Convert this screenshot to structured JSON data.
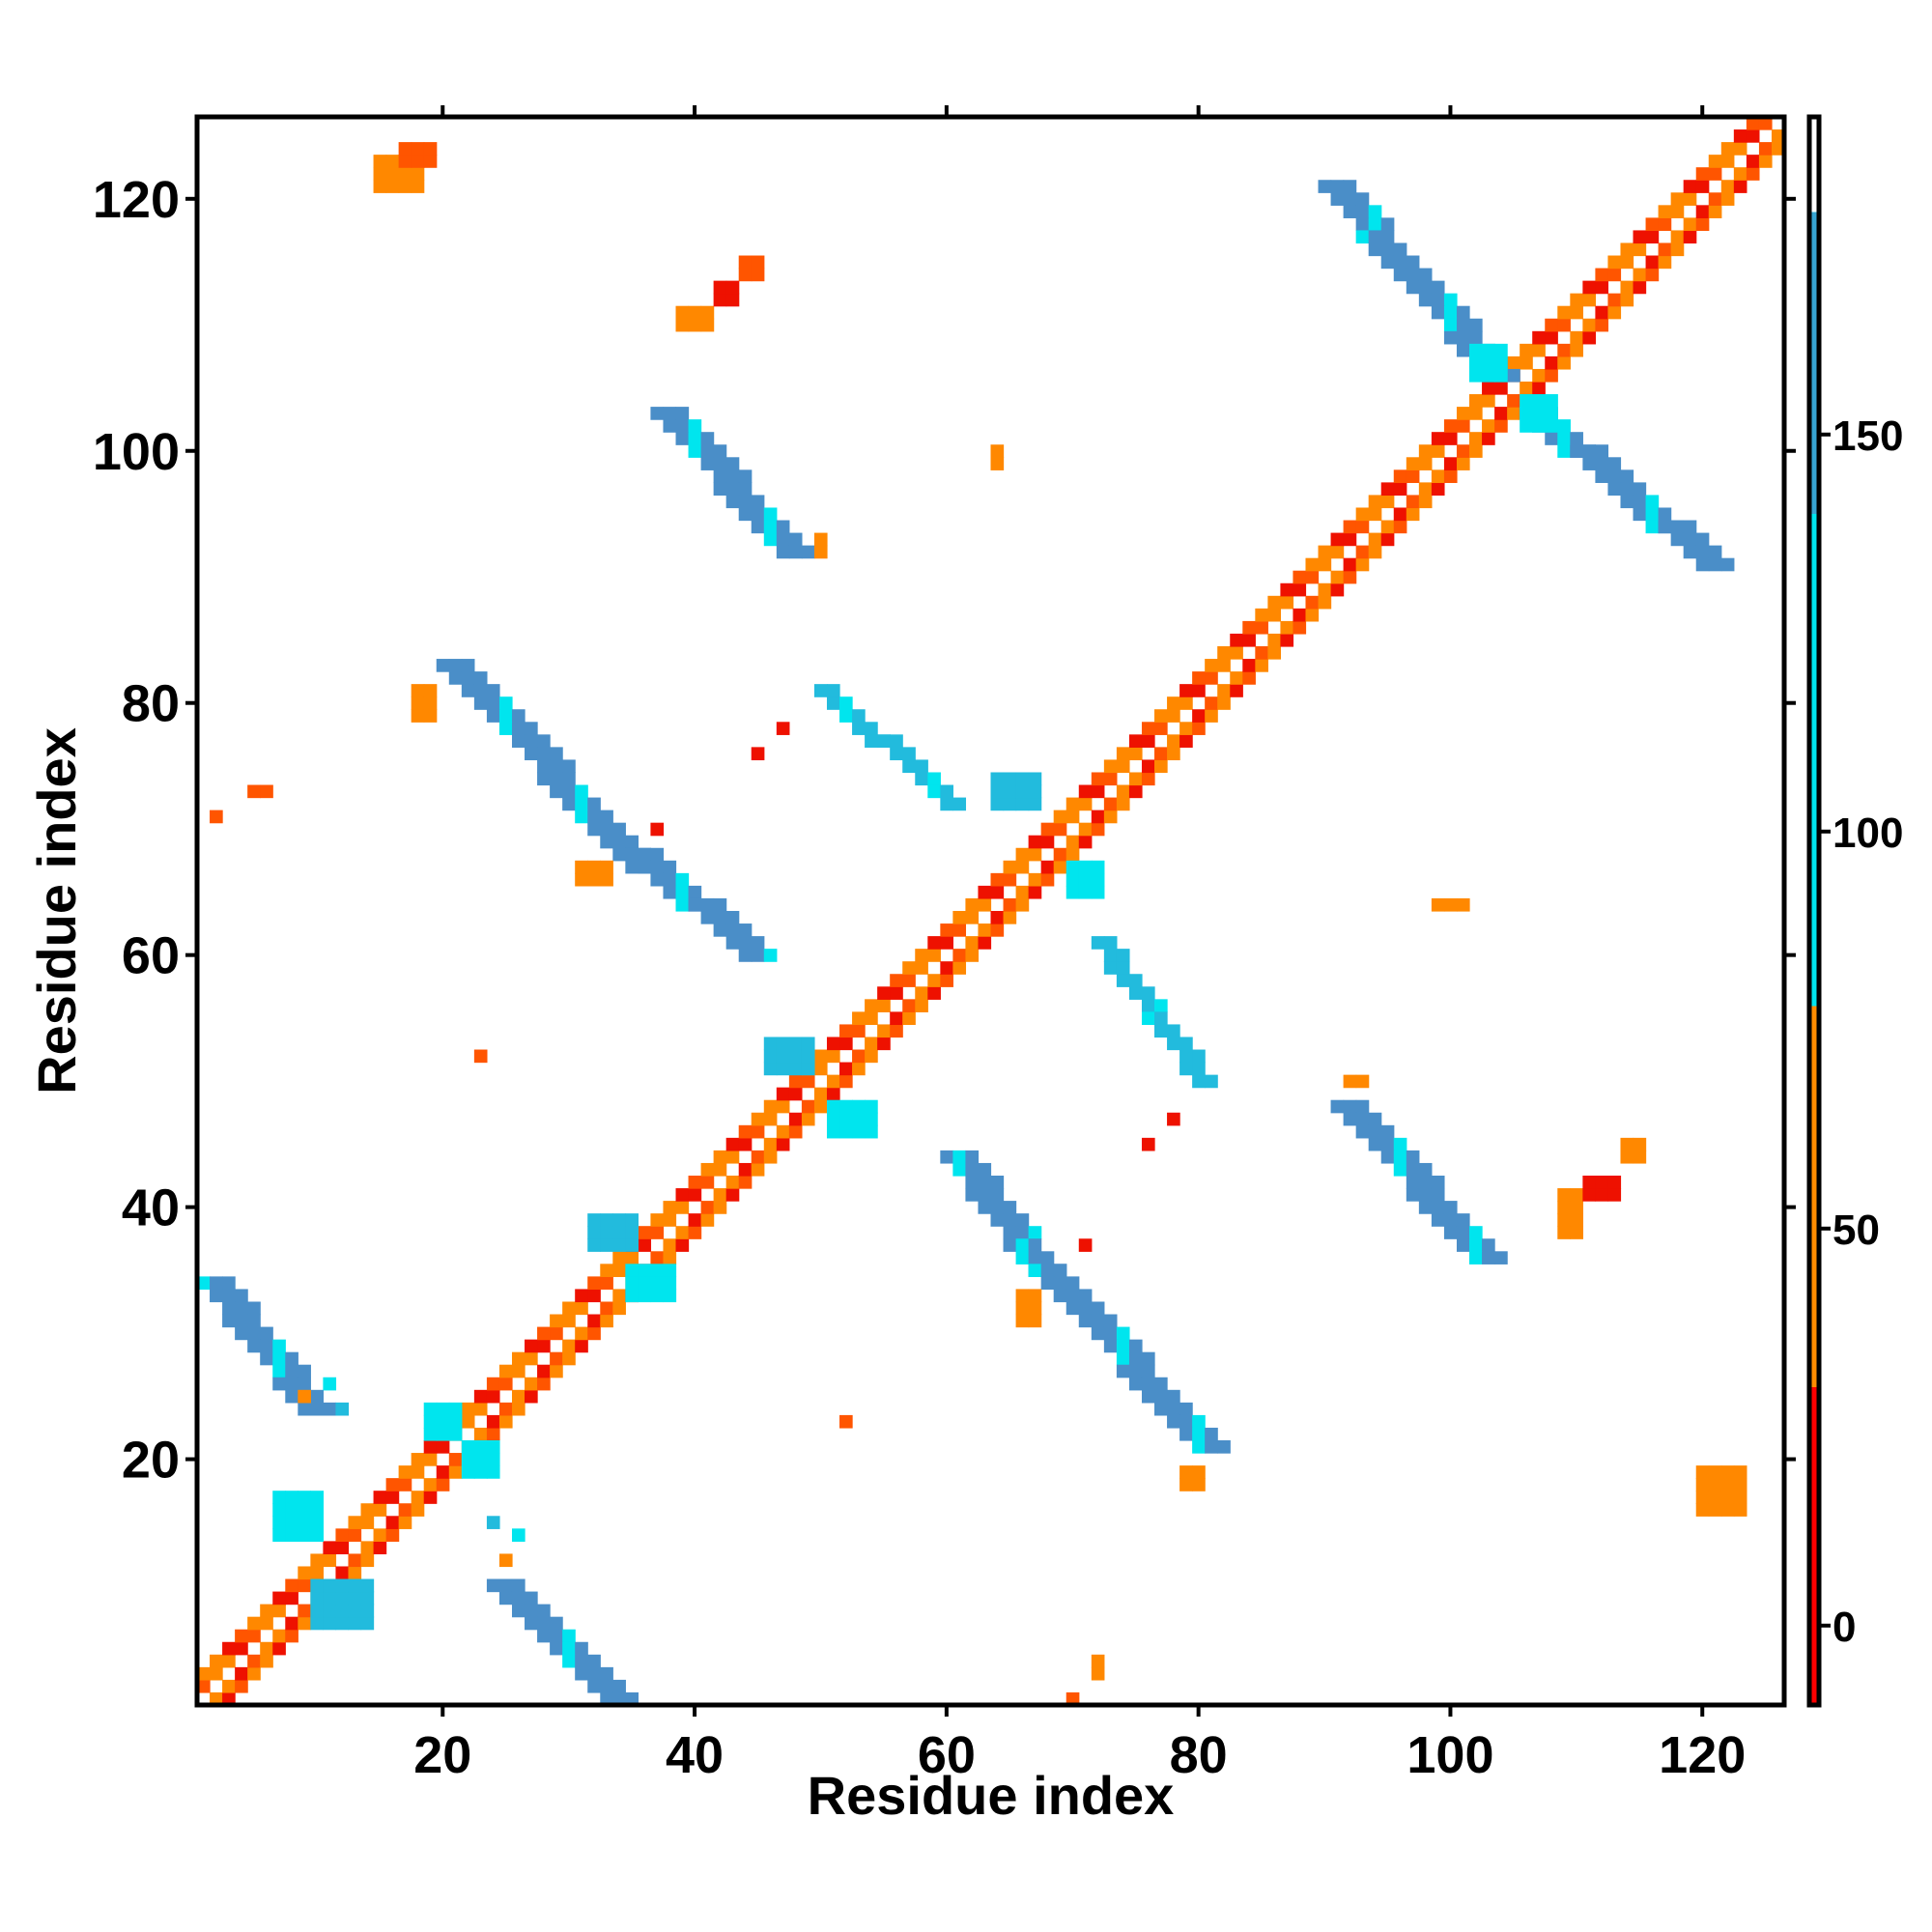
{
  "chart_data": {
    "type": "heatmap",
    "title": "",
    "xlabel": "Residue index",
    "ylabel": "Residue index",
    "xlim": [
      0.5,
      126.5
    ],
    "ylim": [
      0.5,
      126.5
    ],
    "x_ticks": [
      20,
      40,
      60,
      80,
      100,
      120
    ],
    "y_ticks": [
      20,
      40,
      60,
      80,
      100,
      120
    ],
    "x_tick_labels": [
      "20",
      "40",
      "60",
      "80",
      "100",
      "120"
    ],
    "y_tick_labels": [
      "20",
      "40",
      "60",
      "80",
      "100",
      "120"
    ],
    "grid": false,
    "symmetric": true,
    "colorbar": {
      "position": "right",
      "range": [
        -10,
        190
      ],
      "ticks": [
        0,
        50,
        100,
        150
      ],
      "tick_labels": [
        "0",
        "50",
        "100",
        "150"
      ],
      "bands": [
        {
          "from": -10,
          "to": 30,
          "color": "#ff0000"
        },
        {
          "from": 30,
          "to": 78,
          "color": "#ff8c00"
        },
        {
          "from": 78,
          "to": 178,
          "color": "#00e5ee"
        },
        {
          "from": 178,
          "to": 190,
          "color": "#ffffff"
        }
      ]
    },
    "colors": {
      "red": "#ee1100",
      "orange_red": "#ff5500",
      "orange": "#ff8800",
      "cyan": "#00e5ee",
      "sky": "#22bbdd",
      "steel_blue": "#4a8ec8"
    },
    "diagonal": {
      "from": 1,
      "to": 126,
      "color_cycle": [
        "orange",
        "red",
        "orange_red",
        "orange"
      ]
    },
    "segments": [
      {
        "x0": 1,
        "y0": 34,
        "x1": 9,
        "y1": 24,
        "width": 3,
        "color": "steel_blue"
      },
      {
        "x0": 24,
        "y0": 10,
        "x1": 33,
        "y1": 1,
        "width": 3,
        "color": "steel_blue"
      },
      {
        "x0": 20,
        "y0": 83,
        "x1": 35,
        "y1": 67,
        "width": 3,
        "color": "steel_blue"
      },
      {
        "x0": 35,
        "y0": 68,
        "x1": 44,
        "y1": 60,
        "width": 3,
        "color": "steel_blue"
      },
      {
        "x0": 37,
        "y0": 103,
        "x1": 47,
        "y1": 92,
        "width": 3,
        "color": "steel_blue"
      },
      {
        "x0": 50,
        "y0": 81,
        "x1": 60,
        "y1": 72,
        "width": 2,
        "color": "sky"
      },
      {
        "x0": 60,
        "y0": 44,
        "x1": 67,
        "y1": 35,
        "width": 3,
        "color": "steel_blue"
      },
      {
        "x0": 67,
        "y0": 35,
        "x1": 80,
        "y1": 21,
        "width": 3,
        "color": "steel_blue"
      },
      {
        "x0": 72,
        "y0": 61,
        "x1": 80,
        "y1": 50,
        "width": 2,
        "color": "sky"
      },
      {
        "x0": 91,
        "y0": 48,
        "x1": 102,
        "y1": 36,
        "width": 3,
        "color": "steel_blue"
      },
      {
        "x0": 90,
        "y0": 121,
        "x1": 103,
        "y1": 106,
        "width": 3,
        "color": "steel_blue"
      },
      {
        "x0": 106,
        "y0": 103,
        "x1": 120,
        "y1": 91,
        "width": 3,
        "color": "steel_blue"
      }
    ],
    "blobs": [
      {
        "x": 7,
        "y": 14,
        "w": 4,
        "h": 4,
        "color": "cyan"
      },
      {
        "x": 10,
        "y": 7,
        "w": 5,
        "h": 4,
        "color": "sky"
      },
      {
        "x": 19,
        "y": 22,
        "w": 3,
        "h": 3,
        "color": "cyan"
      },
      {
        "x": 22,
        "y": 19,
        "w": 3,
        "h": 3,
        "color": "cyan"
      },
      {
        "x": 32,
        "y": 37,
        "w": 4,
        "h": 3,
        "color": "sky"
      },
      {
        "x": 35,
        "y": 33,
        "w": 4,
        "h": 3,
        "color": "cyan"
      },
      {
        "x": 46,
        "y": 51,
        "w": 4,
        "h": 3,
        "color": "sky"
      },
      {
        "x": 51,
        "y": 46,
        "w": 4,
        "h": 3,
        "color": "cyan"
      },
      {
        "x": 64,
        "y": 72,
        "w": 4,
        "h": 3,
        "color": "sky"
      },
      {
        "x": 70,
        "y": 65,
        "w": 3,
        "h": 3,
        "color": "cyan"
      },
      {
        "x": 102,
        "y": 106,
        "w": 3,
        "h": 3,
        "color": "cyan"
      },
      {
        "x": 106,
        "y": 102,
        "w": 3,
        "h": 3,
        "color": "cyan"
      },
      {
        "x": 15,
        "y": 121,
        "w": 4,
        "h": 3,
        "color": "orange"
      },
      {
        "x": 17,
        "y": 123,
        "w": 3,
        "h": 2,
        "color": "orange_red"
      },
      {
        "x": 120,
        "y": 16,
        "w": 4,
        "h": 4,
        "color": "orange"
      },
      {
        "x": 109,
        "y": 38,
        "w": 2,
        "h": 4,
        "color": "orange"
      },
      {
        "x": 111,
        "y": 41,
        "w": 3,
        "h": 2,
        "color": "red"
      },
      {
        "x": 114,
        "y": 44,
        "w": 2,
        "h": 2,
        "color": "orange"
      },
      {
        "x": 39,
        "y": 110,
        "w": 3,
        "h": 2,
        "color": "orange"
      },
      {
        "x": 42,
        "y": 112,
        "w": 2,
        "h": 2,
        "color": "red"
      },
      {
        "x": 44,
        "y": 114,
        "w": 2,
        "h": 2,
        "color": "orange_red"
      },
      {
        "x": 31,
        "y": 66,
        "w": 3,
        "h": 2,
        "color": "orange"
      },
      {
        "x": 66,
        "y": 31,
        "w": 2,
        "h": 3,
        "color": "orange"
      },
      {
        "x": 18,
        "y": 79,
        "w": 2,
        "h": 3,
        "color": "orange"
      },
      {
        "x": 79,
        "y": 18,
        "w": 2,
        "h": 2,
        "color": "orange"
      },
      {
        "x": 92,
        "y": 50,
        "w": 2,
        "h": 1,
        "color": "orange"
      },
      {
        "x": 99,
        "y": 64,
        "w": 3,
        "h": 1,
        "color": "orange"
      },
      {
        "x": 64,
        "y": 99,
        "w": 1,
        "h": 2,
        "color": "orange"
      },
      {
        "x": 50,
        "y": 92,
        "w": 1,
        "h": 2,
        "color": "orange"
      },
      {
        "x": 2,
        "y": 71,
        "w": 1,
        "h": 1,
        "color": "orange_red"
      },
      {
        "x": 5,
        "y": 73,
        "w": 2,
        "h": 1,
        "color": "orange_red"
      },
      {
        "x": 23,
        "y": 52,
        "w": 1,
        "h": 1,
        "color": "orange_red"
      },
      {
        "x": 52,
        "y": 23,
        "w": 1,
        "h": 1,
        "color": "orange_red"
      },
      {
        "x": 37,
        "y": 70,
        "w": 1,
        "h": 1,
        "color": "red"
      },
      {
        "x": 71,
        "y": 37,
        "w": 1,
        "h": 1,
        "color": "red"
      },
      {
        "x": 45,
        "y": 76,
        "w": 1,
        "h": 1,
        "color": "red"
      },
      {
        "x": 47,
        "y": 78,
        "w": 1,
        "h": 1,
        "color": "red"
      },
      {
        "x": 76,
        "y": 45,
        "w": 1,
        "h": 1,
        "color": "red"
      },
      {
        "x": 78,
        "y": 47,
        "w": 1,
        "h": 1,
        "color": "red"
      },
      {
        "x": 11,
        "y": 26,
        "w": 1,
        "h": 1,
        "color": "cyan"
      },
      {
        "x": 12,
        "y": 24,
        "w": 1,
        "h": 1,
        "color": "sky"
      },
      {
        "x": 24,
        "y": 15,
        "w": 1,
        "h": 1,
        "color": "sky"
      },
      {
        "x": 26,
        "y": 14,
        "w": 1,
        "h": 1,
        "color": "cyan"
      },
      {
        "x": 25,
        "y": 12,
        "w": 1,
        "h": 1,
        "color": "orange"
      },
      {
        "x": 9,
        "y": 25,
        "w": 1,
        "h": 1,
        "color": "orange"
      },
      {
        "x": 72,
        "y": 3,
        "w": 1,
        "h": 2,
        "color": "orange"
      },
      {
        "x": 70,
        "y": 1,
        "w": 1,
        "h": 1,
        "color": "orange_red"
      }
    ]
  }
}
